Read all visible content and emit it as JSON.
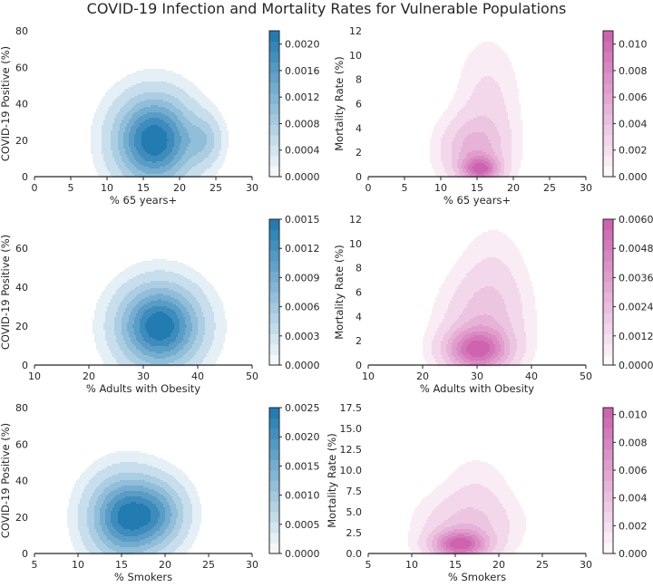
{
  "title": "COVID-19 Infection and Mortality Rates for Vulnerable Populations",
  "colors": {
    "blue": "#1b78b0",
    "pink": "#cc5fad"
  },
  "chart_data": [
    {
      "type": "heatmap",
      "kind": "kde-contour",
      "colormap": "blue",
      "xlabel": "% 65 years+",
      "ylabel": "COVID-19 Positive (%)",
      "xlim": [
        0,
        30
      ],
      "ylim": [
        0,
        80
      ],
      "xticks": [
        "0",
        "5",
        "10",
        "15",
        "20",
        "25",
        "30"
      ],
      "yticks": [
        "0",
        "20",
        "40",
        "60",
        "80"
      ],
      "colorbar": {
        "range": [
          0,
          0.0022
        ],
        "ticks": [
          "0.0000",
          "0.0004",
          "0.0008",
          "0.0012",
          "0.0016",
          "0.0020"
        ]
      },
      "density_components": [
        {
          "x": 16.5,
          "y": 20,
          "sx": 3.6,
          "sy": 16,
          "w": 1.0
        },
        {
          "x": 23.5,
          "y": 20,
          "sx": 1.6,
          "sy": 9,
          "w": 0.25
        }
      ]
    },
    {
      "type": "heatmap",
      "kind": "kde-contour",
      "colormap": "pink",
      "xlabel": "% 65 years+",
      "ylabel": "Mortality Rate (%)",
      "xlim": [
        0,
        30
      ],
      "ylim": [
        0,
        12
      ],
      "xticks": [
        "0",
        "5",
        "10",
        "15",
        "20",
        "25",
        "30"
      ],
      "yticks": [
        "0",
        "2",
        "4",
        "6",
        "8",
        "10",
        "12"
      ],
      "colorbar": {
        "range": [
          0,
          0.011
        ],
        "ticks": [
          "0.000",
          "0.002",
          "0.004",
          "0.006",
          "0.008",
          "0.010"
        ]
      },
      "density_components": [
        {
          "x": 15.5,
          "y": 0.6,
          "sx": 1.8,
          "sy": 0.7,
          "w": 1.0
        },
        {
          "x": 14.5,
          "y": 2.2,
          "sx": 3.0,
          "sy": 1.8,
          "w": 0.55
        },
        {
          "x": 16.5,
          "y": 6.0,
          "sx": 2.8,
          "sy": 3.4,
          "w": 0.22
        },
        {
          "x": 25.5,
          "y": 3.6,
          "sx": 0.3,
          "sy": 0.3,
          "w": 0.05
        }
      ]
    },
    {
      "type": "heatmap",
      "kind": "kde-contour",
      "colormap": "blue",
      "xlabel": "% Adults with Obesity",
      "ylabel": "COVID-19 Positive (%)",
      "xlim": [
        10,
        50
      ],
      "ylim": [
        0,
        75
      ],
      "xticks": [
        "10",
        "20",
        "30",
        "40",
        "50"
      ],
      "yticks": [
        "0",
        "20",
        "40",
        "60"
      ],
      "colorbar": {
        "range": [
          0,
          0.0015
        ],
        "ticks": [
          "0.0000",
          "0.0003",
          "0.0006",
          "0.0009",
          "0.0012",
          "0.0015"
        ]
      },
      "density_components": [
        {
          "x": 33,
          "y": 20,
          "sx": 5.0,
          "sy": 14,
          "w": 1.0
        }
      ]
    },
    {
      "type": "heatmap",
      "kind": "kde-contour",
      "colormap": "pink",
      "xlabel": "% Adults with Obesity",
      "ylabel": "Mortality Rate (%)",
      "xlim": [
        10,
        50
      ],
      "ylim": [
        0,
        12
      ],
      "xticks": [
        "10",
        "20",
        "30",
        "40",
        "50"
      ],
      "yticks": [
        "0",
        "2",
        "4",
        "6",
        "8",
        "10",
        "12"
      ],
      "colorbar": {
        "range": [
          0,
          0.006
        ],
        "ticks": [
          "0.0000",
          "0.0012",
          "0.0024",
          "0.0036",
          "0.0048",
          "0.0060"
        ]
      },
      "density_components": [
        {
          "x": 30,
          "y": 1.2,
          "sx": 4.0,
          "sy": 1.2,
          "w": 1.0
        },
        {
          "x": 31,
          "y": 3.5,
          "sx": 5.0,
          "sy": 2.5,
          "w": 0.35
        },
        {
          "x": 33,
          "y": 7.0,
          "sx": 4.0,
          "sy": 3.0,
          "w": 0.15
        }
      ]
    },
    {
      "type": "heatmap",
      "kind": "kde-contour",
      "colormap": "blue",
      "xlabel": "% Smokers",
      "ylabel": "COVID-19 Positive (%)",
      "xlim": [
        5,
        30
      ],
      "ylim": [
        0,
        80
      ],
      "xticks": [
        "5",
        "10",
        "15",
        "20",
        "25",
        "30"
      ],
      "yticks": [
        "0",
        "20",
        "40",
        "60",
        "80"
      ],
      "colorbar": {
        "range": [
          0,
          0.0025
        ],
        "ticks": [
          "0.0000",
          "0.0005",
          "0.0010",
          "0.0015",
          "0.0020",
          "0.0025"
        ]
      },
      "density_components": [
        {
          "x": 15.5,
          "y": 20,
          "sx": 2.8,
          "sy": 15,
          "w": 1.0
        },
        {
          "x": 19.5,
          "y": 22,
          "sx": 2.2,
          "sy": 12,
          "w": 0.45
        }
      ]
    },
    {
      "type": "heatmap",
      "kind": "kde-contour",
      "colormap": "pink",
      "xlabel": "% Smokers",
      "ylabel": "Mortality Rate (%)",
      "xlim": [
        5,
        30
      ],
      "ylim": [
        0,
        17.5
      ],
      "xticks": [
        "5",
        "10",
        "15",
        "20",
        "25",
        "30"
      ],
      "yticks": [
        "0.0",
        "2.5",
        "5.0",
        "7.5",
        "10.0",
        "12.5",
        "15.0",
        "17.5"
      ],
      "colorbar": {
        "range": [
          0,
          0.0105
        ],
        "ticks": [
          "0.000",
          "0.002",
          "0.004",
          "0.006",
          "0.008",
          "0.010"
        ]
      },
      "density_components": [
        {
          "x": 15.5,
          "y": 1.0,
          "sx": 2.2,
          "sy": 1.2,
          "w": 1.0
        },
        {
          "x": 16.5,
          "y": 3.5,
          "sx": 3.5,
          "sy": 2.5,
          "w": 0.35
        },
        {
          "x": 17.5,
          "y": 8.5,
          "sx": 2.5,
          "sy": 2.5,
          "w": 0.1
        }
      ]
    }
  ]
}
